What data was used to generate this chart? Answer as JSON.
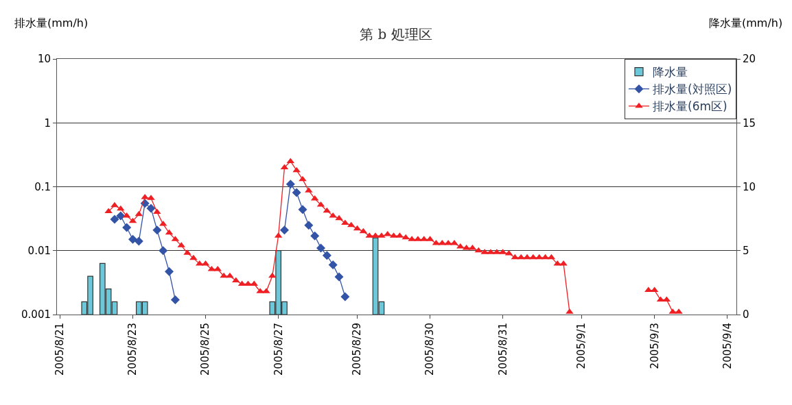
{
  "chart_data": {
    "type": "line",
    "title": "第 b 処理区",
    "ylabel": "排水量(mm/h)",
    "y2label": "降水量(mm/h)",
    "categories": [
      "2005/8/21",
      null,
      null,
      null,
      null,
      null,
      null,
      null,
      null,
      null,
      null,
      null,
      "2005/8/23",
      null,
      null,
      null,
      null,
      null,
      null,
      null,
      null,
      null,
      null,
      null,
      "2005/8/25",
      null,
      null,
      null,
      null,
      null,
      null,
      null,
      null,
      null,
      null,
      null,
      "2005/8/27",
      null,
      null,
      null,
      null,
      null,
      null,
      null,
      null,
      null,
      null,
      null,
      null,
      "2005/8/29",
      null,
      null,
      null,
      null,
      null,
      null,
      null,
      null,
      null,
      null,
      null,
      "2005/8/30",
      null,
      null,
      null,
      null,
      null,
      null,
      null,
      null,
      null,
      null,
      null,
      "2005/8/31",
      null,
      null,
      null,
      null,
      null,
      null,
      null,
      null,
      null,
      null,
      null,
      null,
      "2005/9/1",
      null,
      null,
      null,
      null,
      null,
      null,
      null,
      null,
      null,
      null,
      null,
      "2005/9/3",
      null,
      null,
      null,
      null,
      null,
      null,
      null,
      null,
      null,
      null,
      null,
      "2005/9/4",
      null
    ],
    "log": "y",
    "ylim": [
      0.001,
      10
    ],
    "yticks": [
      0.001,
      0.01,
      0.1,
      1,
      10
    ],
    "y2lim": [
      0,
      20
    ],
    "y2ticks": [
      0,
      5,
      10,
      15,
      20
    ],
    "grid": "y",
    "legend": "top right",
    "line_style": "solid",
    "series": [
      {
        "name": "降水量",
        "type": "bar",
        "axis": "y2",
        "color": "#6cc8d8",
        "values": [
          null,
          null,
          null,
          null,
          1,
          3,
          null,
          4,
          2,
          1,
          null,
          null,
          null,
          1,
          1,
          null,
          null,
          null,
          null,
          null,
          null,
          null,
          null,
          null,
          null,
          null,
          null,
          null,
          null,
          null,
          null,
          null,
          null,
          null,
          null,
          1,
          5,
          1,
          null,
          null,
          null,
          null,
          null,
          null,
          null,
          null,
          null,
          null,
          null,
          null,
          null,
          null,
          6,
          1,
          null,
          null,
          null,
          null,
          null,
          null,
          null,
          null,
          null,
          null,
          null,
          null,
          null,
          null,
          null,
          null,
          null,
          null,
          null,
          null,
          null,
          null,
          null,
          null,
          null,
          null,
          null,
          null,
          null,
          null,
          null,
          null,
          null,
          null,
          null,
          null,
          null,
          null,
          null,
          null,
          null,
          null,
          null,
          null,
          null,
          null,
          null,
          null,
          null,
          null,
          null,
          null,
          null,
          null,
          null,
          null,
          null,
          null
        ]
      },
      {
        "name": "排水量(対照区)",
        "marker": "diamond",
        "color": "#3353a6",
        "values": [
          null,
          null,
          null,
          null,
          null,
          null,
          null,
          null,
          null,
          0.031,
          0.035,
          0.023,
          0.015,
          0.014,
          0.055,
          0.046,
          0.021,
          0.01,
          0.0047,
          0.0017,
          null,
          null,
          null,
          null,
          null,
          null,
          null,
          null,
          null,
          null,
          null,
          null,
          null,
          null,
          null,
          null,
          null,
          0.021,
          0.11,
          0.081,
          0.044,
          0.025,
          0.017,
          0.011,
          0.0084,
          0.006,
          0.0039,
          0.0019,
          null,
          null,
          null,
          null,
          null,
          null,
          null,
          null,
          null,
          null,
          null,
          null,
          null,
          null,
          null,
          null,
          null,
          null,
          null,
          null,
          null,
          null,
          null,
          null,
          null,
          null,
          null,
          null,
          null,
          null,
          null,
          null,
          null,
          null,
          null,
          null,
          null,
          null,
          null,
          null,
          null,
          null,
          null,
          null,
          null,
          null,
          null,
          null,
          null,
          null,
          null,
          null,
          null,
          null,
          null,
          null,
          null,
          null,
          null,
          null,
          null,
          null,
          null,
          null
        ]
      },
      {
        "name": "排水量(6m区)",
        "marker": "triangle",
        "color": "#ee2024",
        "values": [
          null,
          null,
          null,
          null,
          null,
          null,
          null,
          null,
          0.041,
          0.051,
          0.045,
          0.035,
          0.029,
          0.037,
          0.068,
          0.066,
          0.04,
          0.026,
          0.019,
          0.015,
          0.012,
          0.0092,
          0.0076,
          0.0062,
          0.0062,
          0.0051,
          0.0051,
          0.004,
          0.004,
          0.0034,
          0.003,
          0.003,
          0.003,
          0.0023,
          0.0023,
          0.004,
          0.017,
          0.2,
          0.25,
          0.18,
          0.13,
          0.087,
          0.065,
          0.052,
          0.042,
          0.035,
          0.032,
          0.027,
          0.025,
          0.022,
          0.02,
          0.017,
          0.017,
          0.017,
          0.018,
          0.017,
          0.017,
          0.016,
          0.015,
          0.015,
          0.015,
          0.015,
          0.013,
          0.013,
          0.013,
          0.013,
          0.0115,
          0.011,
          0.011,
          0.01,
          0.0094,
          0.0094,
          0.0094,
          0.0094,
          0.009,
          0.0078,
          0.0078,
          0.0078,
          0.0078,
          0.0078,
          0.0078,
          0.0078,
          0.0062,
          0.0062,
          0.0011,
          null,
          null,
          null,
          null,
          null,
          null,
          null,
          null,
          null,
          null,
          null,
          null,
          0.0024,
          0.0024,
          0.0017,
          0.0017,
          0.0011,
          0.0011,
          null,
          null,
          null,
          null,
          null,
          null,
          null,
          null,
          null
        ]
      }
    ]
  }
}
